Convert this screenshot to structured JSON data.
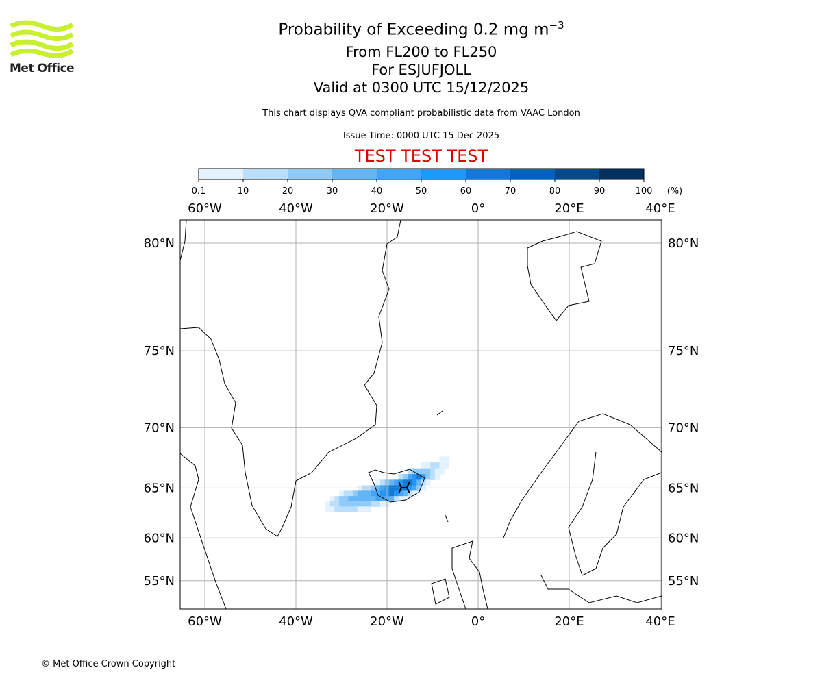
{
  "logo": {
    "text": "Met Office"
  },
  "title": {
    "main": "Probability of Exceeding 0.2 mg m",
    "main_sup": "−3",
    "levels": "From FL200 to FL250",
    "volcano": "For ESJUFJOLL",
    "valid": "Valid at 0300 UTC 15/12/2025"
  },
  "subtitle": "This chart displays QVA compliant probabilistic data from VAAC London",
  "issue_time": "Issue Time: 0000 UTC 15 Dec 2025",
  "test_banner": "TEST TEST TEST",
  "copyright": "© Met Office Crown Copyright",
  "colors": {
    "test": "#e00000",
    "grid": "#b0b0b0"
  },
  "chart_data": {
    "type": "heatmap",
    "title": "Probability of Exceeding 0.2 mg m-3",
    "colorbar": {
      "ticks": [
        "0.1",
        "10",
        "20",
        "30",
        "40",
        "50",
        "60",
        "70",
        "80",
        "90",
        "100"
      ],
      "unit": "(%)",
      "colors": [
        "#e3f2fd",
        "#bbdefb",
        "#90caf9",
        "#64b5f6",
        "#42a5f5",
        "#2196f3",
        "#1478d4",
        "#0062b8",
        "#004a8c",
        "#003060"
      ]
    },
    "lon_ticks": [
      {
        "v": -60,
        "label": "60°W"
      },
      {
        "v": -40,
        "label": "40°W"
      },
      {
        "v": -20,
        "label": "20°W"
      },
      {
        "v": 0,
        "label": "0°"
      },
      {
        "v": 20,
        "label": "20°E"
      },
      {
        "v": 40,
        "label": "40°E"
      }
    ],
    "lat_ticks": [
      {
        "v": 80,
        "label": "80°N"
      },
      {
        "v": 75,
        "label": "75°N"
      },
      {
        "v": 70,
        "label": "70°N"
      },
      {
        "v": 65,
        "label": "65°N"
      },
      {
        "v": 60,
        "label": "60°N"
      },
      {
        "v": 55,
        "label": "55°N"
      }
    ],
    "extent": {
      "lon": [
        -65.4,
        40.3
      ],
      "lat": [
        52.5,
        81.6
      ]
    },
    "grid": true,
    "source_location": {
      "lon": -16.6,
      "lat": 64.9
    },
    "probability_grid": {
      "lon_start": -33,
      "lon_step": 1,
      "lat_values": [
        67.5,
        67.0,
        66.5,
        66.0,
        65.5,
        65.0,
        64.5,
        64.0,
        63.5,
        63.0
      ],
      "bin_note": "digit = colorbar bin index (1 = 0.1-10%, ... 9 = 80-90%), 0 = none",
      "rows": [
        "0000000000000000000000000110",
        "0000000000000000000001122110",
        "0000000000000000002333321100",
        "0000000000000000235675321000",
        "0000000000012345677642100000",
        "0000000122345677776531000000",
        "0001223444556676542100000000",
        "0123344444455542110000000000",
        "1223333333221100000000000000",
        "1122222111000000000000000000"
      ]
    }
  }
}
